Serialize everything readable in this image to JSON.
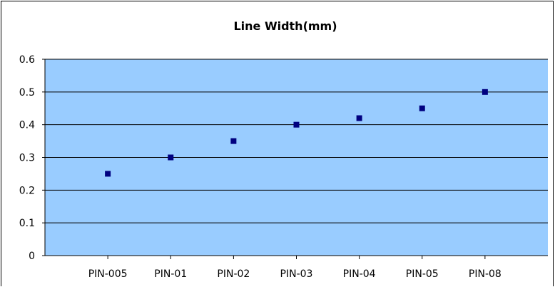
{
  "chart_data": {
    "type": "scatter",
    "title": "Line Width(mm)",
    "xlabel": "",
    "ylabel": "",
    "categories": [
      "PIN-005",
      "PIN-01",
      "PIN-02",
      "PIN-03",
      "PIN-04",
      "PIN-05",
      "PIN-08"
    ],
    "values": [
      0.25,
      0.3,
      0.35,
      0.4,
      0.42,
      0.45,
      0.5
    ],
    "ylim": [
      0,
      0.6
    ],
    "yticks": [
      "0",
      "0.1",
      "0.2",
      "0.3",
      "0.4",
      "0.5",
      "0.6"
    ],
    "grid": true,
    "legend": "none",
    "colors": {
      "plot_background": "#99ccff",
      "marker": "#000080",
      "gridline": "#000000"
    }
  }
}
